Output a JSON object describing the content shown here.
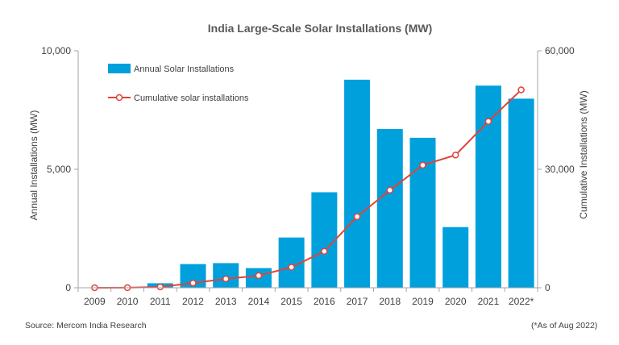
{
  "chart_data": {
    "type": "bar",
    "title": "India Large-Scale Solar Installations (MW)",
    "categories": [
      "2009",
      "2010",
      "2011",
      "2012",
      "2013",
      "2014",
      "2015",
      "2016",
      "2017",
      "2018",
      "2019",
      "2020",
      "2021",
      "2022*"
    ],
    "series": [
      {
        "name": "Annual Solar Installations",
        "type": "bar",
        "axis": "left",
        "color": "#00A0DC",
        "values": [
          0,
          0,
          190,
          1000,
          1040,
          830,
          2120,
          4030,
          8780,
          6700,
          6330,
          2560,
          8530,
          7980
        ]
      },
      {
        "name": "Cumulative solar installations",
        "type": "line",
        "axis": "right",
        "color": "#E0443A",
        "values": [
          10,
          20,
          210,
          1210,
          2250,
          3080,
          5200,
          9230,
          18010,
          24710,
          31040,
          33600,
          42130,
          50110
        ]
      }
    ],
    "ylabel": "Annual Installations (MW)",
    "ylabel_right": "Cumulative Installations (MW)",
    "xlabel": "",
    "ylim": [
      0,
      10000
    ],
    "ylim_right": [
      0,
      60000
    ],
    "yticks": [
      "0",
      "5,000",
      "10,000"
    ],
    "yticks_right": [
      "0",
      "30,000",
      "60,000"
    ],
    "legend_position": "top-left",
    "grid": false
  },
  "notes": {
    "source": "Source: Mercom India Research",
    "footnote": "(*As of Aug 2022)"
  }
}
